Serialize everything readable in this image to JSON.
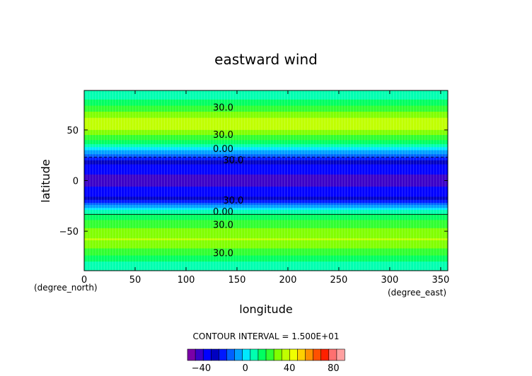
{
  "chart_data": {
    "type": "heatmap",
    "title": "eastward wind",
    "xlabel": "longitude",
    "ylabel": "latitude",
    "x_unit": "(degree_east)",
    "y_unit": "(degree_north)",
    "xlim": [
      0,
      357
    ],
    "ylim": [
      -89,
      89
    ],
    "x_ticks": [
      0,
      50,
      100,
      150,
      200,
      250,
      300,
      350
    ],
    "y_ticks": [
      -50,
      0,
      50
    ],
    "contour_interval_text": "CONTOUR INTERVAL = 1.500E+01",
    "colorbar_ticks": [
      "-40",
      "0",
      "40",
      "80"
    ],
    "colorbar_levels": [
      -52.5,
      -45,
      -37.5,
      -30,
      -22.5,
      -15,
      -7.5,
      0,
      7.5,
      15,
      22.5,
      30,
      37.5,
      45,
      52.5,
      60,
      67.5,
      75,
      82.5,
      90
    ],
    "colors": [
      "#7a00a8",
      "#3a00c8",
      "#0000ff",
      "#0000c0",
      "#0018ff",
      "#0060ff",
      "#00a0ff",
      "#00e8ff",
      "#00ffb0",
      "#00ff60",
      "#30ff30",
      "#80ff00",
      "#c0ff00",
      "#f0ff00",
      "#ffd000",
      "#ff9000",
      "#ff5000",
      "#ff2000",
      "#ff7070",
      "#ffa0a0"
    ],
    "zonal_profile": {
      "lat": [
        -89,
        -80,
        -72,
        -65,
        -58,
        -50,
        -43,
        -35,
        -28,
        -22,
        -16,
        -10,
        -4,
        0,
        4,
        10,
        16,
        22,
        28,
        32,
        38,
        45,
        52,
        58,
        64,
        72,
        80,
        89
      ],
      "u": [
        8,
        15,
        25,
        32,
        38,
        33,
        27,
        18,
        5,
        -15,
        -30,
        -36,
        -38,
        -39,
        -38,
        -36,
        -30,
        -18,
        -3,
        5,
        20,
        30,
        40,
        43,
        35,
        25,
        15,
        8
      ]
    },
    "contour_labels": [
      {
        "lat": 72,
        "lon": 125,
        "text": "30.0"
      },
      {
        "lat": 45,
        "lon": 125,
        "text": "30.0"
      },
      {
        "lat": 31,
        "lon": 125,
        "text": "0.00"
      },
      {
        "lat": 20,
        "lon": 135,
        "text": "30.0"
      },
      {
        "lat": -20,
        "lon": 135,
        "text": "30.0"
      },
      {
        "lat": -31,
        "lon": 125,
        "text": "0.00"
      },
      {
        "lat": -44,
        "lon": 125,
        "text": "30.0"
      },
      {
        "lat": -72,
        "lon": 125,
        "text": "30.0"
      }
    ]
  }
}
